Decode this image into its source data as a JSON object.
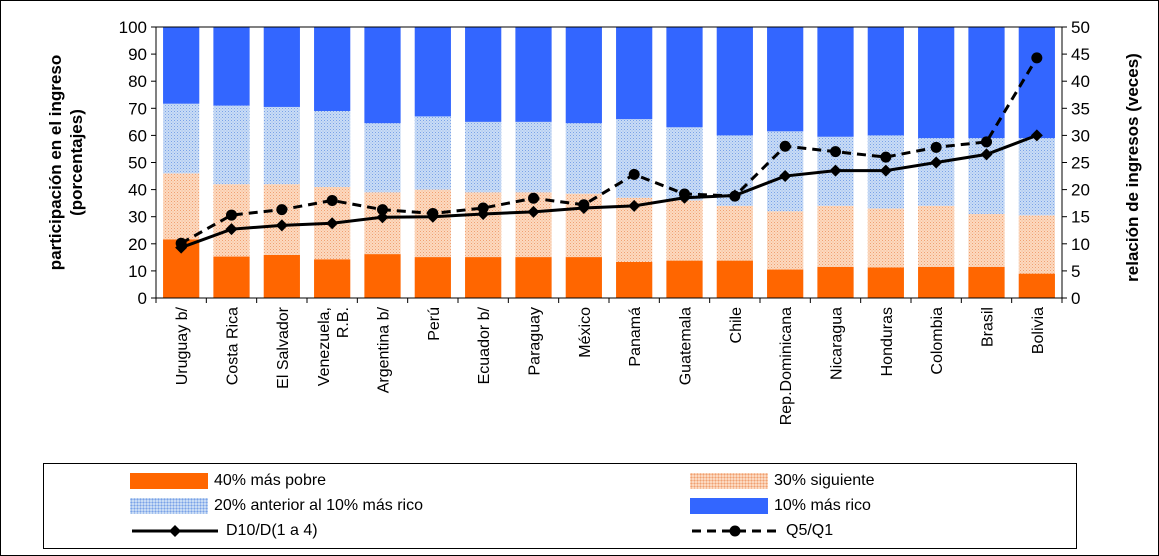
{
  "chart_data": {
    "type": "bar",
    "stacked": true,
    "categories": [
      "Uruguay b/",
      "Costa Rica",
      "El Salvador",
      "Venezuela, R.B.",
      "Argentina b/",
      "Perú",
      "Ecuador b/",
      "Paraguay",
      "México",
      "Panamá",
      "Guatemala",
      "Chile",
      "Rep.Dominicana",
      "Nicaragua",
      "Honduras",
      "Colombia",
      "Brasil",
      "Bolivia"
    ],
    "series": [
      {
        "name": "40% más pobre",
        "axis": "left",
        "color": "#ff6600",
        "values": [
          21.6,
          15.3,
          15.9,
          14.3,
          16.2,
          15.1,
          15.1,
          15.1,
          15.1,
          13.3,
          13.8,
          13.8,
          10.5,
          11.5,
          11.3,
          11.5,
          11.5,
          9.0
        ]
      },
      {
        "name": "30% siguiente",
        "axis": "left",
        "color": "#fcd9c0",
        "values": [
          24.4,
          26.7,
          26.1,
          26.7,
          22.8,
          24.9,
          23.9,
          23.9,
          23.4,
          23.7,
          22.2,
          20.2,
          21.5,
          22.5,
          21.7,
          22.5,
          19.5,
          21.5
        ]
      },
      {
        "name": "20% anterior al 10% más rico",
        "axis": "left",
        "color": "#c9dcf5",
        "values": [
          25.7,
          29.0,
          28.5,
          28.0,
          25.5,
          27.0,
          26.0,
          26.0,
          26.0,
          29.0,
          27.0,
          26.0,
          29.5,
          25.5,
          27.0,
          25.0,
          28.0,
          28.5
        ]
      },
      {
        "name": "10% más rico",
        "axis": "left",
        "color": "#3366ff",
        "values": [
          28.3,
          29.0,
          29.5,
          31.0,
          35.5,
          33.0,
          35.0,
          35.0,
          35.5,
          34.0,
          37.0,
          40.0,
          38.5,
          40.5,
          40.0,
          41.0,
          41.0,
          41.0
        ]
      },
      {
        "name": "D10/D(1 a 4)",
        "axis": "right",
        "type": "line",
        "style": "solid",
        "marker": "diamond",
        "values": [
          9.3,
          12.7,
          13.4,
          13.8,
          14.9,
          15.0,
          15.5,
          15.9,
          16.6,
          17.0,
          18.5,
          18.9,
          22.5,
          23.5,
          23.5,
          25.0,
          26.5,
          30.0
        ]
      },
      {
        "name": "Q5/Q1",
        "axis": "right",
        "type": "line",
        "style": "dashed",
        "marker": "circle",
        "values": [
          10.1,
          15.3,
          16.3,
          18.0,
          16.3,
          15.6,
          16.6,
          18.4,
          17.2,
          22.8,
          19.2,
          18.8,
          28.0,
          27.0,
          26.0,
          27.8,
          28.8,
          44.3
        ]
      }
    ],
    "ylabel": "participación en el ingreso\n(porcentajes)",
    "y2label": "relación de ingresos (veces)",
    "ylim": [
      0,
      100
    ],
    "y2lim": [
      0,
      50
    ],
    "yticks": [
      "0",
      "10",
      "20",
      "30",
      "40",
      "50",
      "60",
      "70",
      "80",
      "90",
      "100"
    ],
    "y2ticks": [
      "0",
      "5",
      "10",
      "15",
      "20",
      "25",
      "30",
      "35",
      "40",
      "45",
      "50"
    ],
    "legend": "bottom",
    "grid": false
  },
  "legend_labels": {
    "poor": "40% más pobre",
    "next30": "30% siguiente",
    "prev20": "20% anterior al 10% más rico",
    "rich": "10% más rico",
    "d10": "D10/D(1 a 4)",
    "q5": "Q5/Q1"
  }
}
